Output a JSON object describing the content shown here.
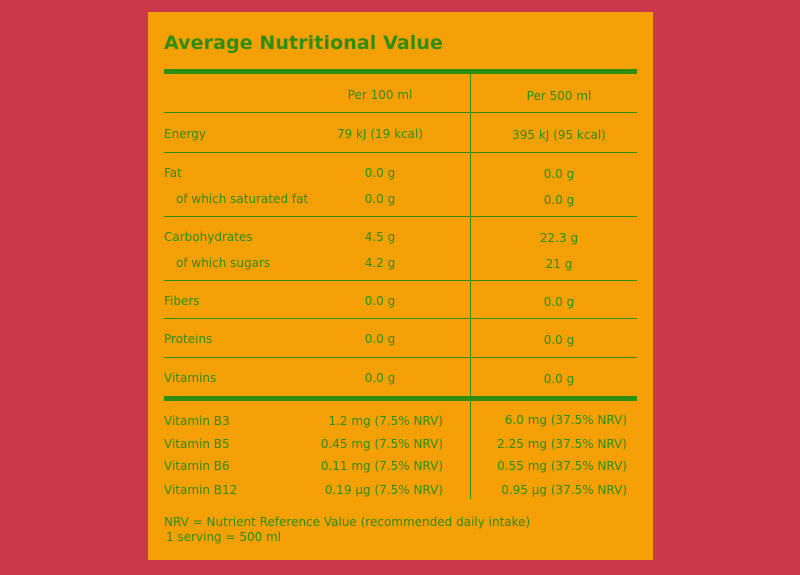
{
  "title": "Average Nutritional Value",
  "columns": {
    "per100": "Per 100 ml",
    "per500": "Per 500 ml"
  },
  "rows": [
    {
      "label": "Energy",
      "per100": "79 kJ (19 kcal)",
      "per500": "395 kJ (95 kcal)"
    },
    {
      "label": "Fat",
      "per100": "0.0 g",
      "per500": "0.0 g"
    },
    {
      "label": "of which saturated fat",
      "per100": "0.0 g",
      "per500": "0.0 g"
    },
    {
      "label": "Carbohydrates",
      "per100": "4.5 g",
      "per500": "22.3 g"
    },
    {
      "label": "of which sugars",
      "per100": "4.2 g",
      "per500": "21 g"
    },
    {
      "label": "Fibers",
      "per100": "0.0 g",
      "per500": "0.0 g"
    },
    {
      "label": "Proteins",
      "per100": "0.0 g",
      "per500": "0.0 g"
    },
    {
      "label": "Vitamins",
      "per100": "0.0 g",
      "per500": "0.0 g"
    }
  ],
  "vitamins": [
    {
      "label": "Vitamin B3",
      "per100": "1.2 mg (7.5% NRV)",
      "per500": "6.0 mg (37.5% NRV)"
    },
    {
      "label": "Vitamin B5",
      "per100": "0.45 mg (7.5% NRV)",
      "per500": "2.25 mg (37.5% NRV)"
    },
    {
      "label": "Vitamin B6",
      "per100": "0.11 mg (7.5% NRV)",
      "per500": "0.55 mg (37.5% NRV)"
    },
    {
      "label": "Vitamin B12",
      "per100": "0.19 µg (7.5% NRV)",
      "per500": "0.95 µg  (37.5% NRV)"
    }
  ],
  "footnote": {
    "nrv": "NRV = Nutrient Reference Value (recommended daily intake)",
    "serving": "1 serving = 500 ml"
  },
  "colors": {
    "background": "#c9394b",
    "panel": "#f5a006",
    "text": "#2f8d10"
  }
}
